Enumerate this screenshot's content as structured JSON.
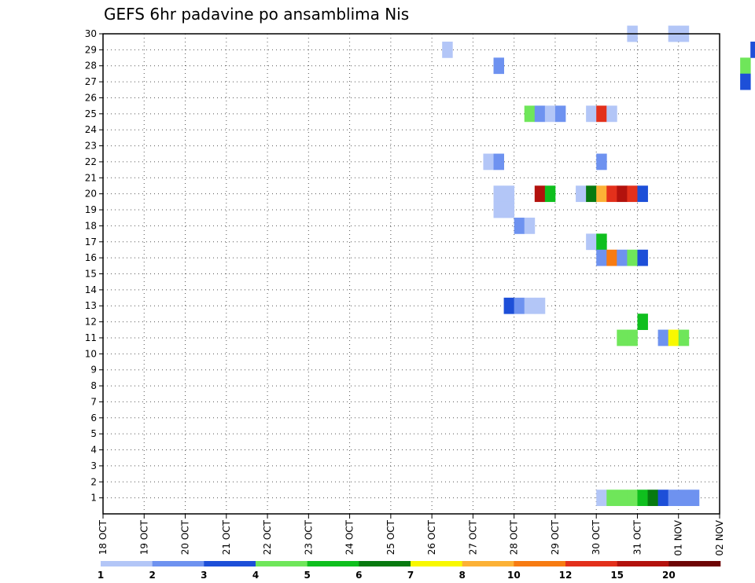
{
  "chart_data": {
    "type": "heatmap",
    "title": "GEFS 6hr padavine po ansamblima Nis",
    "x_ticks": [
      "18 OCT",
      "19 OCT",
      "20 OCT",
      "21 OCT",
      "22 OCT",
      "23 OCT",
      "24 OCT",
      "25 OCT",
      "26 OCT",
      "27 OCT",
      "28 OCT",
      "29 OCT",
      "30 OCT",
      "31 OCT",
      "01 NOV",
      "02 NOV"
    ],
    "y_ticks": [
      "1",
      "2",
      "3",
      "4",
      "5",
      "6",
      "7",
      "8",
      "9",
      "10",
      "11",
      "12",
      "13",
      "14",
      "15",
      "16",
      "17",
      "18",
      "19",
      "20",
      "21",
      "22",
      "23",
      "24",
      "25",
      "26",
      "27",
      "28",
      "29",
      "30"
    ],
    "x_range": [
      "18 OCT",
      "02 NOV"
    ],
    "y_range": [
      0,
      30
    ],
    "grid": "dotted",
    "step_hours": 6,
    "colorbar": {
      "labels": [
        "1",
        "2",
        "3",
        "4",
        "5",
        "6",
        "7",
        "8",
        "10",
        "12",
        "15",
        "20"
      ],
      "colors": [
        "#b3c6f7",
        "#6e92f0",
        "#1d4fd8",
        "#6fe65a",
        "#0fbf1e",
        "#077a10",
        "#f8f800",
        "#fcb136",
        "#f77b12",
        "#e3301b",
        "#b3120d",
        "#6e0505"
      ]
    },
    "series": [
      {
        "member": 30,
        "cells": [
          [
            30.75,
            0
          ],
          [
            31.75,
            0
          ],
          [
            32,
            0
          ]
        ]
      },
      {
        "member": 29,
        "cells": [
          [
            26.25,
            0
          ],
          [
            33.75,
            2
          ],
          [
            34,
            0
          ],
          [
            34.25,
            0
          ],
          [
            35.25,
            0
          ],
          [
            36.5,
            0
          ]
        ]
      },
      {
        "member": 28,
        "cells": [
          [
            27.5,
            1
          ],
          [
            33.5,
            3
          ]
        ]
      },
      {
        "member": 27,
        "cells": [
          [
            33.5,
            2
          ],
          [
            34.75,
            6
          ],
          [
            34,
            0
          ],
          [
            36.25,
            1
          ],
          [
            36.5,
            5
          ]
        ]
      },
      {
        "member": 25,
        "cells": [
          [
            28.25,
            3
          ],
          [
            28.5,
            1
          ],
          [
            28.75,
            0
          ],
          [
            29,
            1
          ],
          [
            29.75,
            0
          ],
          [
            30,
            9
          ],
          [
            30.25,
            0
          ],
          [
            36,
            0
          ],
          [
            36.25,
            1
          ],
          [
            36.5,
            10
          ],
          [
            36.75,
            10
          ]
        ]
      },
      {
        "member": 23,
        "cells": [
          [
            34.75,
            4
          ],
          [
            35,
            0
          ]
        ]
      },
      {
        "member": 22,
        "cells": [
          [
            27.25,
            0
          ],
          [
            27.5,
            1
          ],
          [
            30,
            1
          ],
          [
            35,
            1
          ]
        ]
      },
      {
        "member": 20,
        "cells": [
          [
            27.5,
            0
          ],
          [
            27.75,
            0
          ],
          [
            28.5,
            10
          ],
          [
            28.75,
            4
          ],
          [
            29.5,
            0
          ],
          [
            29.75,
            5
          ],
          [
            30,
            7
          ],
          [
            30.25,
            9
          ],
          [
            30.5,
            10
          ],
          [
            30.75,
            9
          ],
          [
            31,
            2
          ],
          [
            35,
            4
          ],
          [
            35.25,
            5
          ],
          [
            35.5,
            4
          ],
          [
            35.75,
            3
          ],
          [
            36,
            0
          ]
        ]
      },
      {
        "member": 19,
        "cells": [
          [
            27.5,
            0
          ],
          [
            27.75,
            0
          ]
        ]
      },
      {
        "member": 18,
        "cells": [
          [
            28,
            1
          ],
          [
            28.25,
            0
          ]
        ]
      },
      {
        "member": 17,
        "cells": [
          [
            29.75,
            0
          ],
          [
            30,
            4
          ]
        ]
      },
      {
        "member": 16,
        "cells": [
          [
            30,
            1
          ],
          [
            30.25,
            8
          ],
          [
            30.5,
            1
          ],
          [
            30.75,
            3
          ],
          [
            31,
            2
          ]
        ]
      },
      {
        "member": 13,
        "cells": [
          [
            27.75,
            2
          ],
          [
            28,
            1
          ],
          [
            28.25,
            0
          ],
          [
            28.5,
            0
          ]
        ]
      },
      {
        "member": 12,
        "cells": [
          [
            31,
            4
          ],
          [
            36.25,
            8
          ],
          [
            36.5,
            6
          ],
          [
            36.75,
            1
          ]
        ]
      },
      {
        "member": 11,
        "cells": [
          [
            30.5,
            3
          ],
          [
            30.75,
            3
          ],
          [
            31.5,
            1
          ],
          [
            31.75,
            6
          ],
          [
            32,
            3
          ]
        ]
      },
      {
        "member": 10,
        "cells": [
          [
            36.25,
            1
          ]
        ]
      },
      {
        "member": 4,
        "cells": [
          [
            34.75,
            0
          ],
          [
            36.25,
            7
          ],
          [
            36.5,
            3
          ],
          [
            36.75,
            2
          ]
        ]
      },
      {
        "member": 3,
        "cells": [
          [
            36.5,
            0
          ]
        ]
      },
      {
        "member": 1,
        "cells": [
          [
            30,
            0
          ],
          [
            30.25,
            3
          ],
          [
            30.5,
            3
          ],
          [
            30.75,
            3
          ],
          [
            31,
            4
          ],
          [
            31.25,
            5
          ],
          [
            31.5,
            2
          ],
          [
            31.75,
            1
          ],
          [
            32,
            1
          ],
          [
            32.25,
            1
          ],
          [
            36.75,
            0
          ]
        ]
      }
    ]
  }
}
